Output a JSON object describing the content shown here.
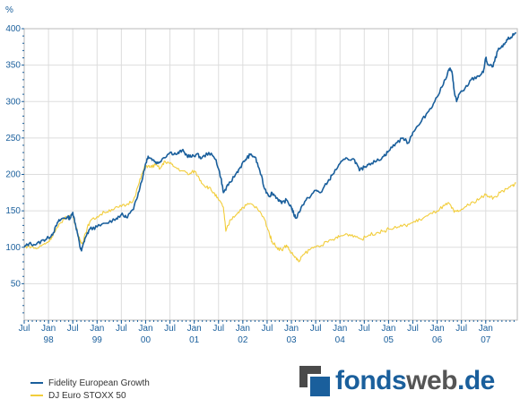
{
  "chart_data": {
    "type": "line",
    "ylabel": "%",
    "ylim": [
      0,
      400
    ],
    "y_ticks": [
      "50",
      "100",
      "150",
      "200",
      "250",
      "300",
      "350",
      "400"
    ],
    "y_tick_values": [
      50,
      100,
      150,
      200,
      250,
      300,
      350,
      400
    ],
    "x_range": [
      1997.5,
      2007.65
    ],
    "x_ticks": [
      {
        "top": "Jul",
        "bottom": "",
        "x": 1997.5
      },
      {
        "top": "Jan",
        "bottom": "98",
        "x": 1998.0
      },
      {
        "top": "Jul",
        "bottom": "",
        "x": 1998.5
      },
      {
        "top": "Jan",
        "bottom": "99",
        "x": 1999.0
      },
      {
        "top": "Jul",
        "bottom": "",
        "x": 1999.5
      },
      {
        "top": "Jan",
        "bottom": "00",
        "x": 2000.0
      },
      {
        "top": "Jul",
        "bottom": "",
        "x": 2000.5
      },
      {
        "top": "Jan",
        "bottom": "01",
        "x": 2001.0
      },
      {
        "top": "Jul",
        "bottom": "",
        "x": 2001.5
      },
      {
        "top": "Jan",
        "bottom": "02",
        "x": 2002.0
      },
      {
        "top": "Jul",
        "bottom": "",
        "x": 2002.5
      },
      {
        "top": "Jan",
        "bottom": "03",
        "x": 2003.0
      },
      {
        "top": "Jul",
        "bottom": "",
        "x": 2003.5
      },
      {
        "top": "Jan",
        "bottom": "04",
        "x": 2004.0
      },
      {
        "top": "Jul",
        "bottom": "",
        "x": 2004.5
      },
      {
        "top": "Jan",
        "bottom": "05",
        "x": 2005.0
      },
      {
        "top": "Jul",
        "bottom": "",
        "x": 2005.5
      },
      {
        "top": "Jan",
        "bottom": "06",
        "x": 2006.0
      },
      {
        "top": "Jul",
        "bottom": "",
        "x": 2006.5
      },
      {
        "top": "Jan",
        "bottom": "07",
        "x": 2007.0
      }
    ],
    "grid": true,
    "legend_position": "bottom-left",
    "series": [
      {
        "name": "Fidelity European Growth",
        "color": "#1a5f9c",
        "points": [
          [
            1997.5,
            100
          ],
          [
            1997.6,
            105
          ],
          [
            1997.75,
            104
          ],
          [
            1997.9,
            110
          ],
          [
            1998.0,
            113
          ],
          [
            1998.1,
            120
          ],
          [
            1998.2,
            135
          ],
          [
            1998.3,
            140
          ],
          [
            1998.4,
            141
          ],
          [
            1998.45,
            140
          ],
          [
            1998.5,
            148
          ],
          [
            1998.55,
            133
          ],
          [
            1998.6,
            118
          ],
          [
            1998.65,
            100
          ],
          [
            1998.68,
            95
          ],
          [
            1998.75,
            112
          ],
          [
            1998.85,
            125
          ],
          [
            1999.0,
            128
          ],
          [
            1999.2,
            133
          ],
          [
            1999.4,
            140
          ],
          [
            1999.5,
            145
          ],
          [
            1999.6,
            141
          ],
          [
            1999.75,
            152
          ],
          [
            1999.85,
            175
          ],
          [
            1999.95,
            200
          ],
          [
            2000.0,
            215
          ],
          [
            2000.05,
            225
          ],
          [
            2000.15,
            220
          ],
          [
            2000.25,
            215
          ],
          [
            2000.35,
            222
          ],
          [
            2000.5,
            230
          ],
          [
            2000.65,
            228
          ],
          [
            2000.75,
            233
          ],
          [
            2000.85,
            226
          ],
          [
            2000.95,
            224
          ],
          [
            2001.05,
            228
          ],
          [
            2001.15,
            222
          ],
          [
            2001.3,
            230
          ],
          [
            2001.45,
            220
          ],
          [
            2001.55,
            195
          ],
          [
            2001.6,
            175
          ],
          [
            2001.7,
            185
          ],
          [
            2001.85,
            200
          ],
          [
            2001.95,
            210
          ],
          [
            2002.05,
            220
          ],
          [
            2002.15,
            227
          ],
          [
            2002.25,
            224
          ],
          [
            2002.35,
            205
          ],
          [
            2002.45,
            180
          ],
          [
            2002.55,
            170
          ],
          [
            2002.6,
            175
          ],
          [
            2002.7,
            168
          ],
          [
            2002.8,
            160
          ],
          [
            2002.9,
            165
          ],
          [
            2003.0,
            155
          ],
          [
            2003.05,
            145
          ],
          [
            2003.1,
            140
          ],
          [
            2003.2,
            155
          ],
          [
            2003.35,
            168
          ],
          [
            2003.5,
            178
          ],
          [
            2003.6,
            175
          ],
          [
            2003.75,
            190
          ],
          [
            2003.85,
            200
          ],
          [
            2004.0,
            215
          ],
          [
            2004.15,
            222
          ],
          [
            2004.3,
            220
          ],
          [
            2004.4,
            205
          ],
          [
            2004.5,
            210
          ],
          [
            2004.6,
            215
          ],
          [
            2004.75,
            218
          ],
          [
            2004.9,
            225
          ],
          [
            2005.0,
            232
          ],
          [
            2005.15,
            243
          ],
          [
            2005.3,
            250
          ],
          [
            2005.4,
            243
          ],
          [
            2005.5,
            258
          ],
          [
            2005.65,
            270
          ],
          [
            2005.8,
            285
          ],
          [
            2005.95,
            300
          ],
          [
            2006.1,
            320
          ],
          [
            2006.25,
            345
          ],
          [
            2006.3,
            342
          ],
          [
            2006.35,
            315
          ],
          [
            2006.4,
            300
          ],
          [
            2006.45,
            310
          ],
          [
            2006.55,
            315
          ],
          [
            2006.7,
            330
          ],
          [
            2006.85,
            335
          ],
          [
            2006.95,
            340
          ],
          [
            2007.0,
            360
          ],
          [
            2007.05,
            350
          ],
          [
            2007.15,
            348
          ],
          [
            2007.25,
            370
          ],
          [
            2007.35,
            375
          ],
          [
            2007.45,
            385
          ],
          [
            2007.55,
            390
          ],
          [
            2007.62,
            395
          ]
        ]
      },
      {
        "name": "DJ Euro STOXX 50",
        "color": "#f2cd3b",
        "points": [
          [
            1997.5,
            100
          ],
          [
            1997.6,
            102
          ],
          [
            1997.75,
            98
          ],
          [
            1997.9,
            104
          ],
          [
            1998.0,
            108
          ],
          [
            1998.1,
            118
          ],
          [
            1998.2,
            128
          ],
          [
            1998.3,
            138
          ],
          [
            1998.4,
            142
          ],
          [
            1998.5,
            145
          ],
          [
            1998.55,
            132
          ],
          [
            1998.6,
            120
          ],
          [
            1998.65,
            108
          ],
          [
            1998.7,
            105
          ],
          [
            1998.75,
            118
          ],
          [
            1998.85,
            135
          ],
          [
            1999.0,
            142
          ],
          [
            1999.15,
            148
          ],
          [
            1999.3,
            152
          ],
          [
            1999.45,
            155
          ],
          [
            1999.6,
            158
          ],
          [
            1999.75,
            165
          ],
          [
            1999.85,
            185
          ],
          [
            1999.95,
            205
          ],
          [
            2000.0,
            212
          ],
          [
            2000.1,
            210
          ],
          [
            2000.2,
            213
          ],
          [
            2000.3,
            208
          ],
          [
            2000.4,
            218
          ],
          [
            2000.5,
            215
          ],
          [
            2000.6,
            210
          ],
          [
            2000.75,
            205
          ],
          [
            2000.9,
            200
          ],
          [
            2001.0,
            205
          ],
          [
            2001.1,
            195
          ],
          [
            2001.2,
            185
          ],
          [
            2001.3,
            182
          ],
          [
            2001.4,
            175
          ],
          [
            2001.5,
            165
          ],
          [
            2001.6,
            155
          ],
          [
            2001.65,
            122
          ],
          [
            2001.75,
            138
          ],
          [
            2001.9,
            148
          ],
          [
            2002.0,
            155
          ],
          [
            2002.15,
            160
          ],
          [
            2002.3,
            153
          ],
          [
            2002.45,
            138
          ],
          [
            2002.55,
            118
          ],
          [
            2002.6,
            108
          ],
          [
            2002.7,
            100
          ],
          [
            2002.8,
            96
          ],
          [
            2002.9,
            103
          ],
          [
            2003.0,
            92
          ],
          [
            2003.1,
            85
          ],
          [
            2003.15,
            80
          ],
          [
            2003.25,
            90
          ],
          [
            2003.4,
            98
          ],
          [
            2003.55,
            102
          ],
          [
            2003.75,
            107
          ],
          [
            2003.9,
            112
          ],
          [
            2004.0,
            115
          ],
          [
            2004.15,
            118
          ],
          [
            2004.3,
            116
          ],
          [
            2004.45,
            111
          ],
          [
            2004.6,
            117
          ],
          [
            2004.75,
            120
          ],
          [
            2004.9,
            122
          ],
          [
            2005.0,
            125
          ],
          [
            2005.2,
            128
          ],
          [
            2005.35,
            130
          ],
          [
            2005.5,
            134
          ],
          [
            2005.65,
            138
          ],
          [
            2005.8,
            143
          ],
          [
            2006.0,
            150
          ],
          [
            2006.15,
            157
          ],
          [
            2006.25,
            160
          ],
          [
            2006.35,
            148
          ],
          [
            2006.45,
            150
          ],
          [
            2006.6,
            156
          ],
          [
            2006.75,
            162
          ],
          [
            2006.9,
            168
          ],
          [
            2007.0,
            172
          ],
          [
            2007.1,
            170
          ],
          [
            2007.15,
            167
          ],
          [
            2007.3,
            175
          ],
          [
            2007.45,
            180
          ],
          [
            2007.55,
            185
          ],
          [
            2007.62,
            188
          ]
        ]
      }
    ]
  },
  "legend": {
    "items": [
      {
        "label": "Fidelity European Growth",
        "color": "#1a5f9c"
      },
      {
        "label": "DJ Euro STOXX 50",
        "color": "#f2cd3b"
      }
    ]
  },
  "logo": {
    "part1": "fonds",
    "part2": "web",
    "part3": ".de"
  }
}
